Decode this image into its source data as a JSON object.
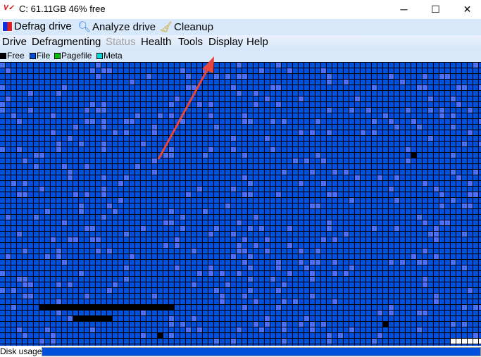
{
  "window": {
    "title": "C:   61.11GB 46% free",
    "minimize": "─",
    "maximize": "☐",
    "close": "✕"
  },
  "toolbar": {
    "defrag": "Defrag drive",
    "analyze": "Analyze drive",
    "cleanup": "Cleanup"
  },
  "menu": [
    "Drive",
    "Defragmenting",
    "Status",
    "Health",
    "Tools",
    "Display",
    "Help"
  ],
  "legend": [
    {
      "label": "Free",
      "color": "#000000"
    },
    {
      "label": "File",
      "color": "#0050dc"
    },
    {
      "label": "Pagefile",
      "color": "#00c000"
    },
    {
      "label": "Meta",
      "color": "#00d8d8"
    }
  ],
  "map_colors": {
    "file": "#0050dc",
    "file_light": "#4a72ff",
    "free": "#000000",
    "empty": "#ffffff"
  },
  "status": {
    "label": "Disk usage",
    "usage_percent": 100
  },
  "annotation": {
    "arrow_color": "#e8453c"
  }
}
